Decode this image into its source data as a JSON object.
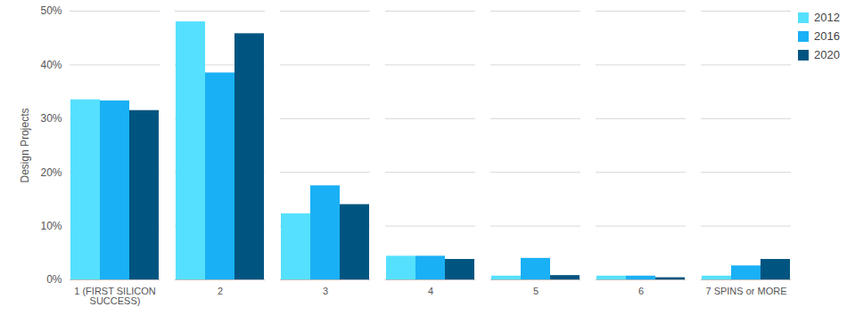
{
  "chart_data": {
    "type": "bar",
    "y_label": "Design Projects",
    "categories": [
      "1 (FIRST SILICON SUCCESS)",
      "2",
      "3",
      "4",
      "5",
      "6",
      "7 SPINS or MORE"
    ],
    "series": [
      {
        "name": "2012",
        "color": "#55e0ff",
        "values": [
          33.5,
          48,
          12.3,
          4.4,
          0.7,
          0.7,
          0.7
        ]
      },
      {
        "name": "2016",
        "color": "#1ab0f5",
        "values": [
          33.3,
          38.5,
          17.5,
          4.4,
          4,
          0.7,
          2.6
        ]
      },
      {
        "name": "2020",
        "color": "#005580",
        "values": [
          31.5,
          45.8,
          14,
          3.8,
          0.8,
          0.4,
          3.8
        ]
      }
    ],
    "ylim": [
      0,
      50
    ],
    "yticks": [
      {
        "value": 0,
        "label": "0%"
      },
      {
        "value": 10,
        "label": "10%"
      },
      {
        "value": 20,
        "label": "20%"
      },
      {
        "value": 30,
        "label": "30%"
      },
      {
        "value": 40,
        "label": "40%"
      },
      {
        "value": 50,
        "label": "50%"
      }
    ],
    "grid": true,
    "legend": "top-right"
  }
}
